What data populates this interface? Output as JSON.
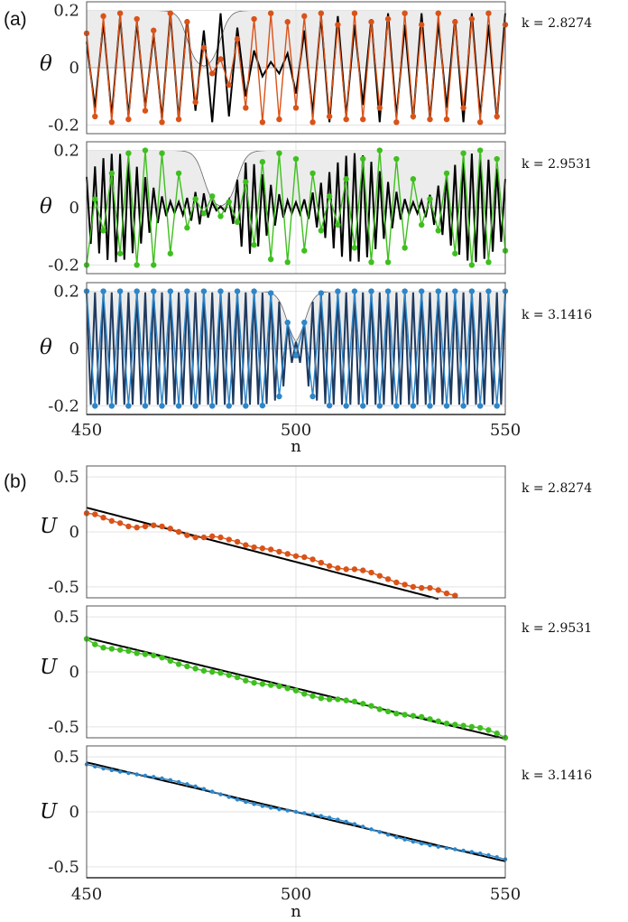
{
  "figure": {
    "panel_labels": [
      "(a)",
      "(b)"
    ],
    "x_axis_label": "n",
    "x_ticks": [
      "450",
      "500",
      "550"
    ]
  },
  "chart_data": [
    {
      "type": "line",
      "panel": "(a)",
      "ylabel": "θ",
      "k_label": "k = 2.8274",
      "xlim": [
        450,
        550
      ],
      "ylim": [
        -0.23,
        0.23
      ],
      "y_ticks": [
        "0.2",
        "0",
        "-0.2"
      ],
      "y_tick_values": [
        0.2,
        0,
        -0.2
      ],
      "envelope": {
        "amplitude": 0.2,
        "dip_center": 478,
        "dip_width": 4
      },
      "series": [
        {
          "role": "continuous",
          "color": "#000000",
          "amplitude": 0.19,
          "sample_period": 2.0,
          "values": [
            0.09,
            -0.14,
            0.16,
            -0.17,
            0.18,
            -0.17,
            0.16,
            -0.14,
            0.12,
            -0.18,
            0.19,
            -0.18,
            0.17,
            -0.15,
            0.13,
            -0.19,
            0.19,
            -0.17,
            0.14,
            -0.1,
            0.06,
            -0.03,
            0.02,
            -0.02,
            0.05,
            -0.09,
            0.13,
            -0.16,
            0.18,
            -0.19,
            0.18,
            -0.17,
            0.15,
            -0.13,
            0.17,
            -0.19,
            0.19,
            -0.17,
            0.15,
            -0.18,
            0.19,
            -0.18,
            0.16,
            -0.14,
            0.17,
            -0.19,
            0.19,
            -0.17,
            0.15,
            -0.18,
            0.19
          ]
        },
        {
          "role": "discrete",
          "color": "#D95319",
          "x": [
            450,
            452,
            454,
            456,
            458,
            460,
            462,
            464,
            466,
            468,
            470,
            472,
            474,
            476,
            478,
            480,
            482,
            484,
            486,
            488,
            490,
            492,
            494,
            496,
            498,
            500,
            502,
            504,
            506,
            508,
            510,
            512,
            514,
            516,
            518,
            520,
            522,
            524,
            526,
            528,
            530,
            532,
            534,
            536,
            538,
            540,
            542,
            544,
            546,
            548,
            550
          ],
          "values": [
            0.12,
            -0.17,
            0.18,
            -0.19,
            0.19,
            -0.18,
            0.17,
            -0.15,
            0.13,
            -0.19,
            0.19,
            -0.18,
            0.16,
            -0.12,
            0.07,
            -0.02,
            0.03,
            -0.06,
            0.1,
            -0.14,
            0.17,
            -0.19,
            0.19,
            -0.18,
            0.16,
            -0.14,
            0.18,
            -0.19,
            0.19,
            -0.17,
            0.15,
            -0.18,
            0.19,
            -0.18,
            0.16,
            -0.14,
            0.17,
            -0.19,
            0.19,
            -0.17,
            0.15,
            -0.18,
            0.19,
            -0.18,
            0.16,
            -0.14,
            0.17,
            -0.19,
            0.19,
            -0.17,
            0.15
          ]
        }
      ]
    },
    {
      "type": "line",
      "panel": "(a)",
      "ylabel": "θ",
      "k_label": "k = 2.9531",
      "xlim": [
        450,
        550
      ],
      "ylim": [
        -0.23,
        0.23
      ],
      "y_ticks": [
        "0.2",
        "0",
        "-0.2"
      ],
      "y_tick_values": [
        0.2,
        0,
        -0.2
      ],
      "envelope": {
        "amplitude": 0.2,
        "dip_center": 482,
        "dip_width": 4
      },
      "series": [
        {
          "role": "continuous",
          "color": "#000000",
          "amplitude": 0.19,
          "sample_period": 1.0
        },
        {
          "role": "discrete",
          "color": "#3FBF1F",
          "x": [
            450,
            452,
            454,
            456,
            458,
            460,
            462,
            464,
            466,
            468,
            470,
            472,
            474,
            476,
            478,
            480,
            482,
            484,
            486,
            488,
            490,
            492,
            494,
            496,
            498,
            500,
            502,
            504,
            506,
            508,
            510,
            512,
            514,
            516,
            518,
            520,
            522,
            524,
            526,
            528,
            530,
            532,
            534,
            536,
            538,
            540,
            542,
            544,
            546,
            548,
            550
          ],
          "values": [
            -0.2,
            0.03,
            -0.08,
            0.12,
            -0.16,
            0.19,
            -0.2,
            0.2,
            -0.2,
            0.19,
            -0.16,
            0.12,
            -0.07,
            0.03,
            -0.02,
            0.04,
            -0.03,
            0.02,
            -0.05,
            0.09,
            -0.13,
            0.16,
            -0.18,
            0.19,
            -0.19,
            0.17,
            -0.15,
            0.12,
            -0.08,
            0.04,
            -0.06,
            0.1,
            -0.14,
            0.17,
            -0.19,
            0.2,
            -0.19,
            0.17,
            -0.14,
            0.1,
            -0.06,
            0.03,
            -0.08,
            0.12,
            -0.16,
            0.19,
            -0.2,
            0.2,
            -0.19,
            0.17,
            -0.15
          ]
        }
      ]
    },
    {
      "type": "line",
      "panel": "(a)",
      "ylabel": "θ",
      "k_label": "k = 3.1416",
      "xlim": [
        450,
        550
      ],
      "ylim": [
        -0.23,
        0.23
      ],
      "y_ticks": [
        "0.2",
        "0",
        "-0.2"
      ],
      "y_tick_values": [
        0.2,
        0,
        -0.2
      ],
      "envelope": {
        "amplitude": 0.2,
        "dip_center": 500,
        "dip_width": 2.2
      },
      "series": [
        {
          "role": "continuous",
          "color": "#1F3A60",
          "amplitude": 0.2,
          "sample_period": 2.0
        },
        {
          "role": "discrete",
          "color": "#2E86C8",
          "amplitude": 0.2,
          "sample_period": 2.0
        }
      ]
    },
    {
      "type": "line",
      "panel": "(b)",
      "ylabel": "U",
      "k_label": "k = 2.8274",
      "xlim": [
        450,
        550
      ],
      "ylim": [
        -0.6,
        0.6
      ],
      "y_ticks": [
        "0.5",
        "0",
        "-0.5"
      ],
      "y_tick_values": [
        0.5,
        0,
        -0.5
      ],
      "series": [
        {
          "role": "continuous",
          "color": "#000000",
          "x": [
            450,
            533
          ],
          "values": [
            0.22,
            -0.6
          ],
          "step_center": 478,
          "step_height": 0.13
        },
        {
          "role": "discrete",
          "color": "#D95319",
          "x": [
            450,
            452,
            454,
            456,
            458,
            460,
            462,
            464,
            466,
            468,
            470,
            472,
            474,
            476,
            478,
            480,
            482,
            484,
            486,
            488,
            490,
            492,
            494,
            496,
            498,
            500,
            502,
            504,
            506,
            508,
            510,
            512,
            514,
            516,
            518,
            520,
            522,
            524,
            526,
            528,
            530,
            532,
            534,
            536,
            538
          ],
          "values": [
            0.17,
            0.16,
            0.13,
            0.1,
            0.08,
            0.05,
            0.04,
            0.05,
            0.06,
            0.05,
            0.03,
            0.0,
            -0.03,
            -0.05,
            -0.05,
            -0.04,
            -0.05,
            -0.07,
            -0.09,
            -0.12,
            -0.14,
            -0.15,
            -0.16,
            -0.18,
            -0.2,
            -0.22,
            -0.23,
            -0.25,
            -0.28,
            -0.31,
            -0.33,
            -0.34,
            -0.34,
            -0.35,
            -0.37,
            -0.4,
            -0.43,
            -0.46,
            -0.48,
            -0.5,
            -0.51,
            -0.51,
            -0.53,
            -0.56,
            -0.58
          ]
        }
      ]
    },
    {
      "type": "line",
      "panel": "(b)",
      "ylabel": "U",
      "k_label": "k = 2.9531",
      "xlim": [
        450,
        550
      ],
      "ylim": [
        -0.6,
        0.6
      ],
      "y_ticks": [
        "0.5",
        "0",
        "-0.5"
      ],
      "y_tick_values": [
        0.5,
        0,
        -0.5
      ],
      "series": [
        {
          "role": "continuous",
          "color": "#000000",
          "x": [
            450,
            549
          ],
          "values": [
            0.31,
            -0.6
          ],
          "step_center": 482,
          "step_height": 0.12
        },
        {
          "role": "discrete",
          "color": "#3FBF1F",
          "x": [
            450,
            452,
            454,
            456,
            458,
            460,
            462,
            464,
            466,
            468,
            470,
            472,
            474,
            476,
            478,
            480,
            482,
            484,
            486,
            488,
            490,
            492,
            494,
            496,
            498,
            500,
            502,
            504,
            506,
            508,
            510,
            512,
            514,
            516,
            518,
            520,
            522,
            524,
            526,
            528,
            530,
            532,
            534,
            536,
            538,
            540,
            542,
            544,
            546,
            548,
            550
          ],
          "values": [
            0.3,
            0.25,
            0.22,
            0.21,
            0.2,
            0.19,
            0.17,
            0.16,
            0.15,
            0.13,
            0.1,
            0.07,
            0.05,
            0.03,
            0.01,
            0.0,
            -0.01,
            -0.03,
            -0.05,
            -0.08,
            -0.1,
            -0.11,
            -0.12,
            -0.13,
            -0.15,
            -0.17,
            -0.2,
            -0.22,
            -0.24,
            -0.25,
            -0.25,
            -0.26,
            -0.27,
            -0.29,
            -0.31,
            -0.34,
            -0.36,
            -0.38,
            -0.39,
            -0.4,
            -0.41,
            -0.43,
            -0.45,
            -0.47,
            -0.48,
            -0.49,
            -0.5,
            -0.51,
            -0.53,
            -0.56,
            -0.6
          ]
        }
      ]
    },
    {
      "type": "line",
      "panel": "(b)",
      "ylabel": "U",
      "k_label": "k = 3.1416",
      "xlim": [
        450,
        550
      ],
      "ylim": [
        -0.6,
        0.6
      ],
      "y_ticks": [
        "0.5",
        "0",
        "-0.5"
      ],
      "y_tick_values": [
        0.5,
        0,
        -0.5
      ],
      "series": [
        {
          "role": "continuous",
          "color": "#000000",
          "x": [
            450,
            550
          ],
          "values": [
            0.45,
            -0.45
          ],
          "step_center": 500,
          "step_height": 0.05
        },
        {
          "role": "discrete",
          "color": "#2E86C8",
          "x": [
            450,
            550
          ],
          "values": [
            0.45,
            -0.45
          ],
          "step_center": 500,
          "step_height": 0.05,
          "sample_period": 2.0
        }
      ]
    }
  ]
}
